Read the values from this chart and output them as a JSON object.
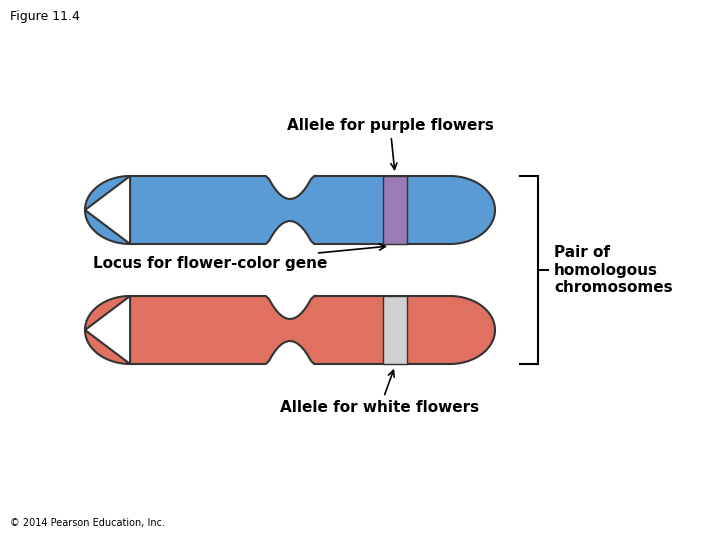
{
  "figure_label": "Figure 11.4",
  "copyright": "© 2014 Pearson Education, Inc.",
  "chr1_color": "#5b9bd5",
  "chr1_band_color": "#9b7bb5",
  "chr2_color": "#e07060",
  "chr2_band_color": "#d0d0d0",
  "outline_color": "#333333",
  "label_allele_purple": "Allele for purple flowers",
  "label_allele_white": "Allele for white flowers",
  "label_locus": "Locus for flower-color gene",
  "label_pair": "Pair of\nhomologous\nchromosomes",
  "background_color": "#ffffff",
  "text_color": "#000000",
  "font_size_title": 9,
  "font_size_labels": 11,
  "font_size_pair": 11,
  "font_size_copyright": 7
}
